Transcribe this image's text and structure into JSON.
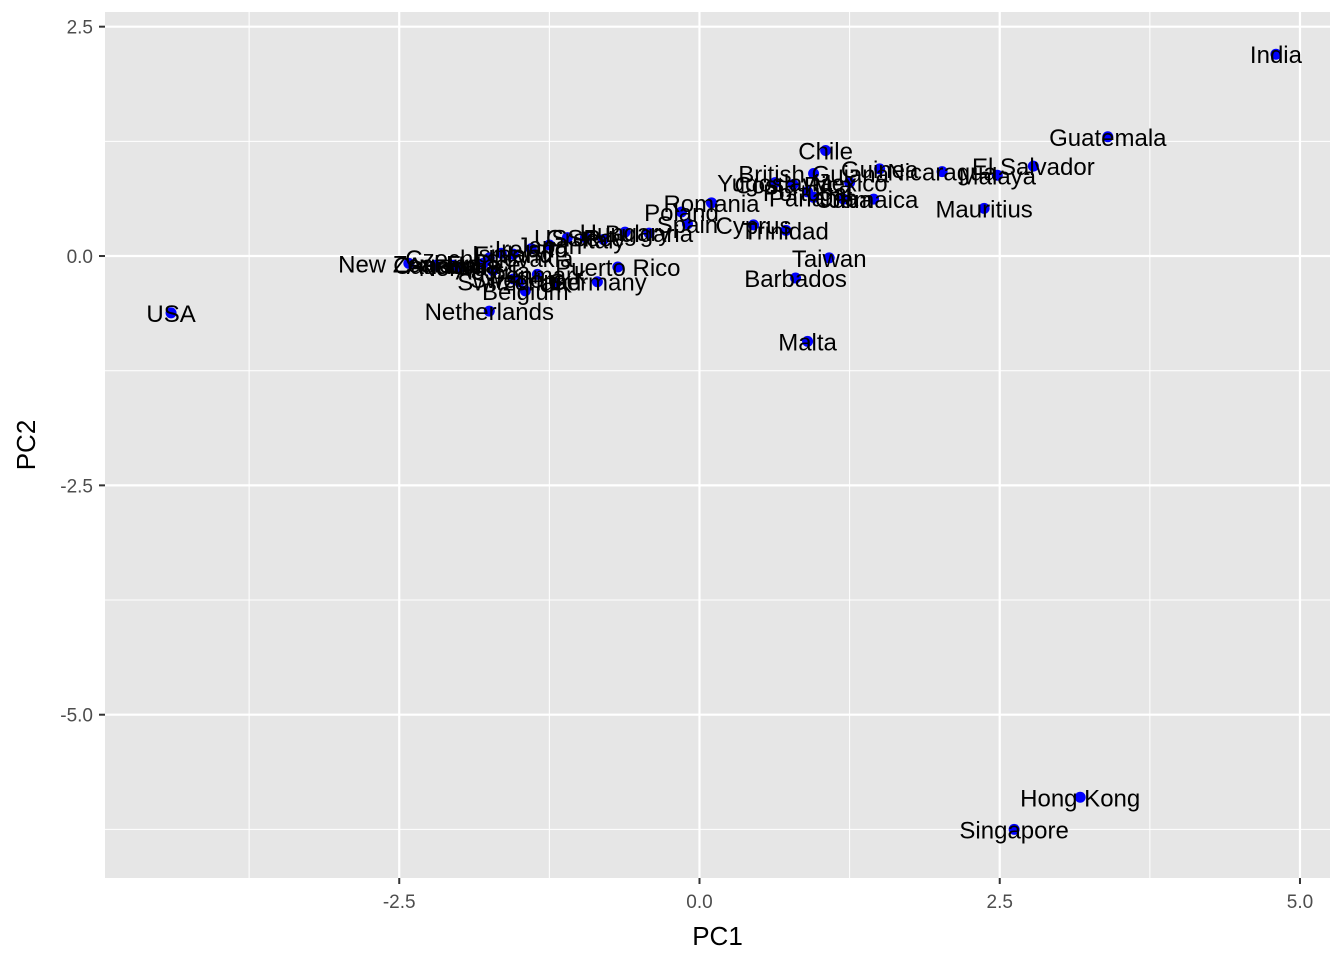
{
  "chart_data": {
    "type": "scatter",
    "xlabel": "PC1",
    "ylabel": "PC2",
    "xlim": [
      -4.95,
      5.25
    ],
    "ylim": [
      -6.78,
      2.66
    ],
    "x_ticks": [
      -2.5,
      0.0,
      2.5,
      5.0
    ],
    "x_tick_labels": [
      "-2.5",
      "0.0",
      "2.5",
      "5.0"
    ],
    "y_ticks": [
      -5.0,
      -2.5,
      0.0,
      2.5
    ],
    "y_tick_labels": [
      "-5.0",
      "-2.5",
      "0.0",
      "2.5"
    ],
    "grid": true,
    "panel_background": "#e6e6e6",
    "grid_color": "#ffffff",
    "point_color": "#0000ff",
    "points": [
      {
        "label": "India",
        "x": 4.8,
        "y": 2.2
      },
      {
        "label": "Guatemala",
        "x": 3.4,
        "y": 1.3
      },
      {
        "label": "El Salvador",
        "x": 2.78,
        "y": 0.98
      },
      {
        "label": "Malaya",
        "x": 2.48,
        "y": 0.88
      },
      {
        "label": "Nicaragua",
        "x": 2.02,
        "y": 0.92
      },
      {
        "label": "Guinea",
        "x": 1.5,
        "y": 0.95
      },
      {
        "label": "Chile",
        "x": 1.05,
        "y": 1.15
      },
      {
        "label": "British Guiana",
        "x": 0.95,
        "y": 0.9
      },
      {
        "label": "Mexico",
        "x": 1.25,
        "y": 0.8
      },
      {
        "label": "Jamaica",
        "x": 1.45,
        "y": 0.62
      },
      {
        "label": "Mauritius",
        "x": 2.37,
        "y": 0.52
      },
      {
        "label": "Yugoslavia",
        "x": 0.63,
        "y": 0.8
      },
      {
        "label": "Costa Rica",
        "x": 0.78,
        "y": 0.78
      },
      {
        "label": "Portugal",
        "x": 0.9,
        "y": 0.7
      },
      {
        "label": "Panama",
        "x": 0.95,
        "y": 0.64
      },
      {
        "label": "Cuba",
        "x": 1.2,
        "y": 0.62
      },
      {
        "label": "Romania",
        "x": 0.1,
        "y": 0.58
      },
      {
        "label": "Poland",
        "x": -0.15,
        "y": 0.48
      },
      {
        "label": "Spain",
        "x": -0.1,
        "y": 0.35
      },
      {
        "label": "Cyprus",
        "x": 0.45,
        "y": 0.34
      },
      {
        "label": "Trinidad",
        "x": 0.72,
        "y": 0.28
      },
      {
        "label": "Taiwan",
        "x": 1.08,
        "y": -0.02
      },
      {
        "label": "Barbados",
        "x": 0.8,
        "y": -0.24
      },
      {
        "label": "Malta",
        "x": 0.9,
        "y": -0.93
      },
      {
        "label": "Bulgaria",
        "x": -0.42,
        "y": 0.25
      },
      {
        "label": "Hungary",
        "x": -0.62,
        "y": 0.26
      },
      {
        "label": "Italy",
        "x": -0.8,
        "y": 0.18
      },
      {
        "label": "Greece",
        "x": -0.95,
        "y": 0.2
      },
      {
        "label": "USSR",
        "x": -1.1,
        "y": 0.2
      },
      {
        "label": "Japan",
        "x": -1.25,
        "y": 0.12
      },
      {
        "label": "Ireland",
        "x": -1.4,
        "y": 0.08
      },
      {
        "label": "Finland",
        "x": -1.55,
        "y": 0.02
      },
      {
        "label": "Israel",
        "x": -1.65,
        "y": 0.03
      },
      {
        "label": "Czechoslovakia",
        "x": -1.75,
        "y": -0.02
      },
      {
        "label": "France",
        "x": -1.8,
        "y": -0.08
      },
      {
        "label": "Norway",
        "x": -2.0,
        "y": -0.12
      },
      {
        "label": "Austria",
        "x": -1.72,
        "y": -0.16
      },
      {
        "label": "Puerto Rico",
        "x": -0.68,
        "y": -0.12
      },
      {
        "label": "Denmark",
        "x": -1.35,
        "y": -0.2
      },
      {
        "label": "Sweden",
        "x": -1.55,
        "y": -0.25
      },
      {
        "label": "Switzerland",
        "x": -1.5,
        "y": -0.28
      },
      {
        "label": "Germany",
        "x": -0.85,
        "y": -0.28
      },
      {
        "label": "Belgium",
        "x": -1.45,
        "y": -0.38
      },
      {
        "label": "UK",
        "x": -1.2,
        "y": -0.3
      },
      {
        "label": "New Zealand",
        "x": -2.42,
        "y": -0.08
      },
      {
        "label": "Canada",
        "x": -2.2,
        "y": -0.1
      },
      {
        "label": "Australia",
        "x": -2.05,
        "y": -0.1
      },
      {
        "label": "Netherlands",
        "x": -1.75,
        "y": -0.6
      },
      {
        "label": "USA",
        "x": -4.4,
        "y": -0.62
      },
      {
        "label": "Hong Kong",
        "x": 3.17,
        "y": -5.9
      },
      {
        "label": "Singapore",
        "x": 2.62,
        "y": -6.25
      }
    ]
  }
}
